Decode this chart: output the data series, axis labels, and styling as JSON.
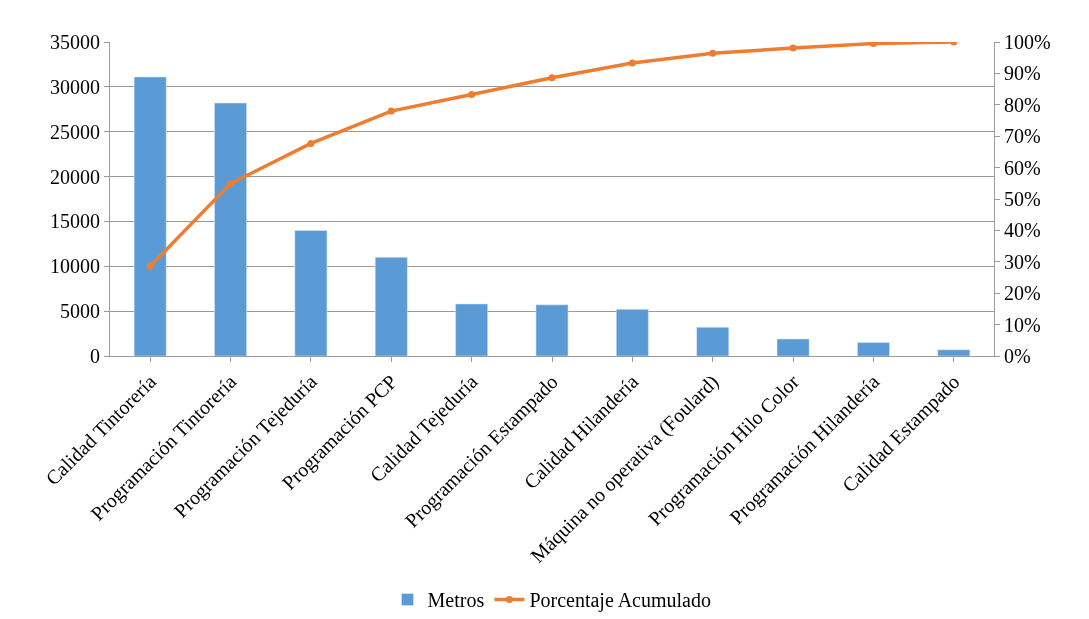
{
  "chart_data": {
    "type": "bar",
    "categories": [
      "Calidad Tintorería",
      "Programación Tintorería",
      "Programación Tejeduría",
      "Programación PCP",
      "Calidad Tejeduría",
      "Programación Estampado",
      "Calidad Hilandería",
      "Máquina no operativa (Foulard)",
      "Programación Hilo Color",
      "Programación Hilandería",
      "Calidad Estampado"
    ],
    "series": [
      {
        "name": "Metros",
        "color": "#5b9bd5",
        "values": [
          31100,
          28200,
          14000,
          11000,
          5800,
          5700,
          5200,
          3200,
          1900,
          1500,
          700
        ]
      },
      {
        "name": "Porcentaje Acumulado",
        "type": "line",
        "axis": "y2",
        "color": "#ed7d31",
        "marker": "circle",
        "values": [
          28.6,
          54.9,
          67.7,
          78.0,
          83.3,
          88.6,
          93.3,
          96.4,
          98.1,
          99.5,
          100
        ]
      }
    ],
    "ylim": [
      0,
      35000
    ],
    "yticks": [
      0,
      5000,
      10000,
      15000,
      20000,
      25000,
      30000,
      35000
    ],
    "y2lim": [
      0,
      100
    ],
    "y2ticks": [
      {
        "value": 0,
        "label": "0%"
      },
      {
        "value": 10,
        "label": "10%"
      },
      {
        "value": 20,
        "label": "20%"
      },
      {
        "value": 30,
        "label": "30%"
      },
      {
        "value": 40,
        "label": "40%"
      },
      {
        "value": 50,
        "label": "50%"
      },
      {
        "value": 60,
        "label": "60%"
      },
      {
        "value": 70,
        "label": "70%"
      },
      {
        "value": 80,
        "label": "80%"
      },
      {
        "value": 90,
        "label": "90%"
      },
      {
        "value": 100,
        "label": "100%"
      }
    ],
    "grid": "y",
    "legend": "bottom"
  }
}
